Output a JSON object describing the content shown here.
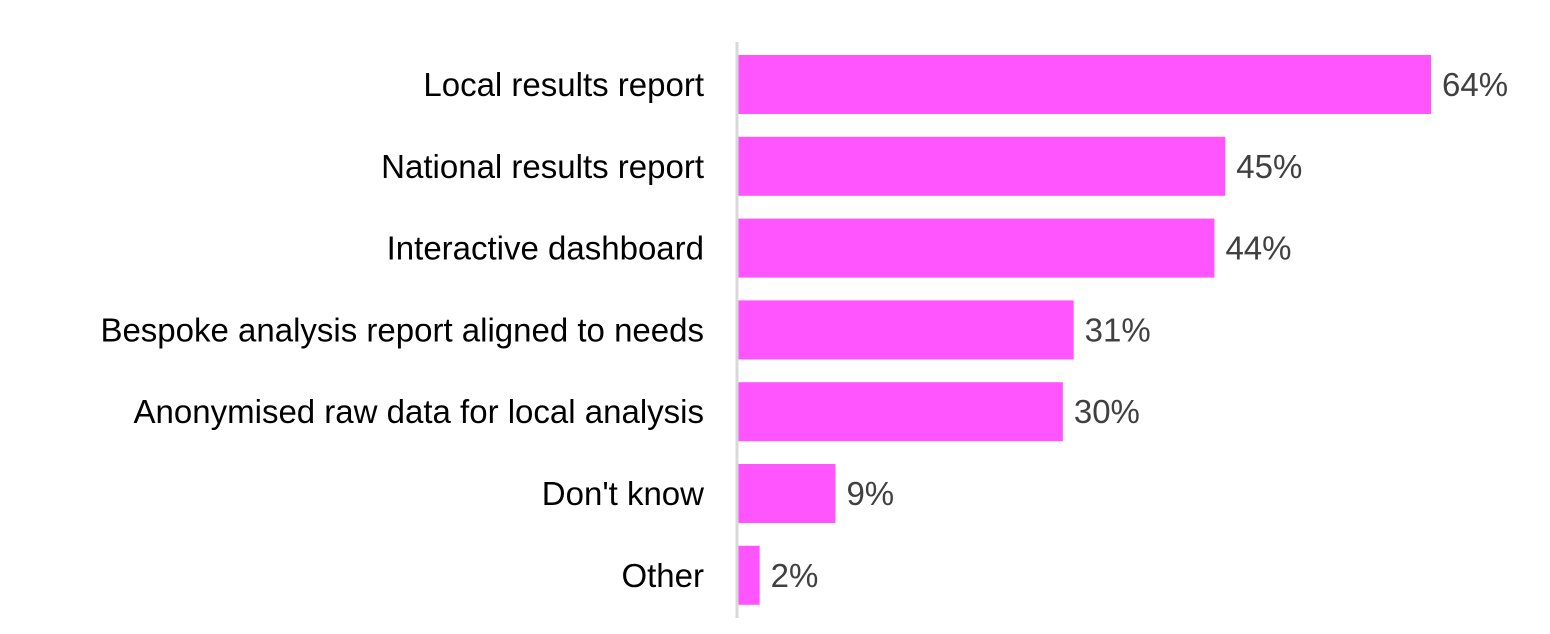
{
  "chart_data": {
    "type": "bar",
    "orientation": "horizontal",
    "title": "",
    "xlabel": "",
    "ylabel": "",
    "categories": [
      "Local results report",
      "National results report",
      "Interactive dashboard",
      "Bespoke analysis report aligned to needs",
      "Anonymised raw data for local analysis",
      "Don't know",
      "Other"
    ],
    "values": [
      64,
      45,
      44,
      31,
      30,
      9,
      2
    ],
    "value_labels": [
      "64%",
      "45%",
      "44%",
      "31%",
      "30%",
      "9%",
      "2%"
    ],
    "unit": "%",
    "xlim": [
      0,
      64
    ],
    "grid": false,
    "legend": "none",
    "bar_color": "#ff55ff",
    "axis_color": "#d9d9d9",
    "category_text_color": "#000000",
    "value_text_color": "#404040"
  }
}
